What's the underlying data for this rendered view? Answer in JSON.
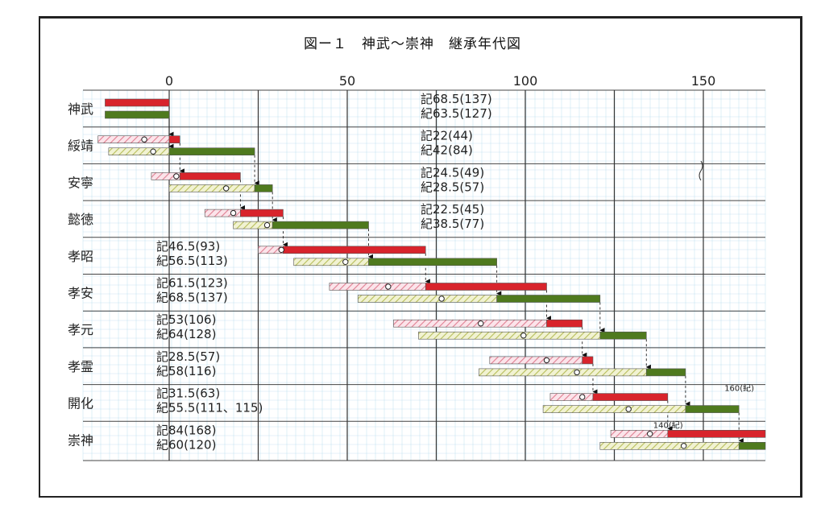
{
  "chart_data": {
    "type": "gantt",
    "title": "図ー１　神武〜崇神　継承年代図",
    "x_ticks": [
      0,
      50,
      100,
      150
    ],
    "xlim": [
      -18,
      165
    ],
    "legend": {
      "ki_label": "記",
      "nihongi_label": "紀"
    },
    "colors": {
      "ki_solid": "#d8242c",
      "ki_hatch": "#e89aa6",
      "nihongi_solid": "#4f7a1e",
      "nihongi_hatch": "#c5cf72",
      "grid": "#9fd0e8"
    },
    "rows": [
      {
        "name": "神武",
        "ki_text": "記68.5(137)",
        "nihongi_text": "紀63.5(127)",
        "text_side": "right",
        "ki": {
          "hatch": null,
          "solid": [
            -18,
            0
          ]
        },
        "nihongi": {
          "hatch": null,
          "solid": [
            -18,
            0
          ]
        }
      },
      {
        "name": "綏靖",
        "ki_text": "記22(44)",
        "nihongi_text": "紀42(84)",
        "text_side": "right",
        "ki": {
          "hatch": [
            -20,
            0
          ],
          "solid": [
            0,
            3
          ]
        },
        "nihongi": {
          "hatch": [
            -17,
            0
          ],
          "solid": [
            0,
            24
          ]
        }
      },
      {
        "name": "安寧",
        "ki_text": "記24.5(49)",
        "nihongi_text": "紀28.5(57)",
        "text_side": "right",
        "ki": {
          "hatch": [
            -5,
            3
          ],
          "solid": [
            3,
            20
          ]
        },
        "nihongi": {
          "hatch": [
            0,
            24
          ],
          "solid": [
            24,
            29
          ]
        }
      },
      {
        "name": "懿徳",
        "ki_text": "記22.5(45)",
        "nihongi_text": "紀38.5(77)",
        "text_side": "right",
        "ki": {
          "hatch": [
            10,
            20
          ],
          "solid": [
            20,
            32
          ]
        },
        "nihongi": {
          "hatch": [
            18,
            29
          ],
          "solid": [
            29,
            56
          ]
        }
      },
      {
        "name": "孝昭",
        "ki_text": "記46.5(93)",
        "nihongi_text": "紀56.5(113)",
        "text_side": "left",
        "ki": {
          "hatch": [
            25,
            32
          ],
          "solid": [
            32,
            72
          ]
        },
        "nihongi": {
          "hatch": [
            35,
            56
          ],
          "solid": [
            56,
            92
          ]
        }
      },
      {
        "name": "孝安",
        "ki_text": "記61.5(123)",
        "nihongi_text": "紀68.5(137)",
        "text_side": "left",
        "ki": {
          "hatch": [
            45,
            72
          ],
          "solid": [
            72,
            106
          ]
        },
        "nihongi": {
          "hatch": [
            53,
            92
          ],
          "solid": [
            92,
            121
          ]
        }
      },
      {
        "name": "孝元",
        "ki_text": "記53(106)",
        "nihongi_text": "紀64(128)",
        "text_side": "left",
        "ki": {
          "hatch": [
            63,
            106
          ],
          "solid": [
            106,
            116
          ]
        },
        "nihongi": {
          "hatch": [
            70,
            121
          ],
          "solid": [
            121,
            134
          ]
        }
      },
      {
        "name": "孝霊",
        "ki_text": "記28.5(57)",
        "nihongi_text": "紀58(116)",
        "text_side": "left",
        "ki": {
          "hatch": [
            90,
            116
          ],
          "solid": [
            116,
            119
          ]
        },
        "nihongi": {
          "hatch": [
            87,
            134
          ],
          "solid": [
            134,
            145
          ]
        }
      },
      {
        "name": "開化",
        "ki_text": "記31.5(63)",
        "nihongi_text": "紀55.5(111、115)",
        "text_side": "left",
        "ki": {
          "hatch": [
            107,
            119
          ],
          "solid": [
            119,
            140
          ]
        },
        "nihongi": {
          "hatch": [
            105,
            145
          ],
          "solid": [
            145,
            160
          ]
        }
      },
      {
        "name": "崇神",
        "ki_text": "記84(168)",
        "nihongi_text": "紀60(120)",
        "text_side": "left",
        "ki": {
          "hatch": [
            124,
            140
          ],
          "solid": [
            140,
            168
          ]
        },
        "nihongi": {
          "hatch": [
            121,
            160
          ],
          "solid": [
            160,
            168
          ]
        }
      }
    ],
    "annotations": [
      {
        "text": "160(紀)",
        "x": 160,
        "row": 8
      },
      {
        "text": "140(紀)",
        "x": 140,
        "row": 9
      }
    ]
  }
}
